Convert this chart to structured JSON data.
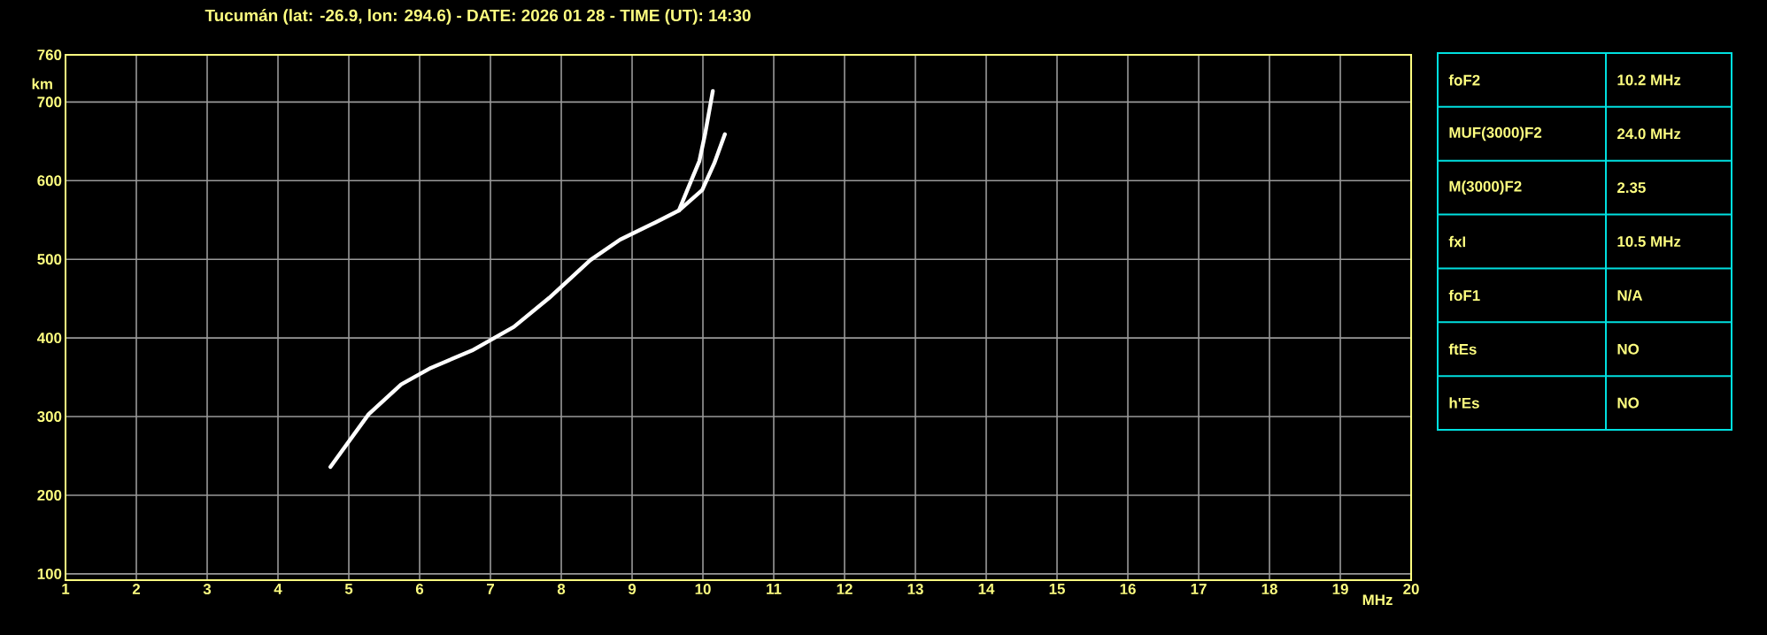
{
  "chart_data": [
    {
      "type": "line",
      "title": "Tucumán (lat: -26.9, lon: 294.6) - DATE: 2026 01 28 - TIME (UT): 14:30",
      "xlabel": "MHz",
      "ylabel": "km",
      "series": [
        {
          "color": "#ffffff",
          "x": [
            4.74,
            5.28,
            5.74,
            6.16,
            6.74,
            7.33,
            7.83,
            8.41,
            8.83,
            9.33,
            9.66,
            9.99,
            10.16,
            10.31
          ],
          "values": [
            236,
            303,
            341,
            362,
            384,
            414,
            451,
            499,
            525,
            547,
            562,
            588,
            622,
            659
          ]
        },
        {
          "color": "#ffffff",
          "x": [
            9.66,
            9.83,
            9.95,
            10.03,
            10.14
          ],
          "values": [
            562,
            599,
            625,
            659,
            714
          ]
        }
      ],
      "xlim": [
        1,
        20
      ],
      "xticks": [
        1,
        2,
        3,
        4,
        5,
        6,
        7,
        8,
        9,
        10,
        11,
        12,
        13,
        14,
        15,
        16,
        17,
        18,
        19,
        20
      ],
      "ylim": [
        92,
        760
      ],
      "yticks": [
        100,
        200,
        300,
        400,
        500,
        600,
        700,
        760
      ],
      "grid": true,
      "marker": "none",
      "line_style": "solid"
    },
    {
      "type": "other",
      "annotations": [
        "foF2",
        "10.2 MHz",
        "MUF(3000)F2",
        "24.0 MHz",
        "M(3000)F2",
        "2.35",
        "fxI",
        "10.5 MHz",
        "foF1",
        "N/A",
        "ftEs",
        "NO",
        "h'Es",
        "NO"
      ]
    }
  ]
}
